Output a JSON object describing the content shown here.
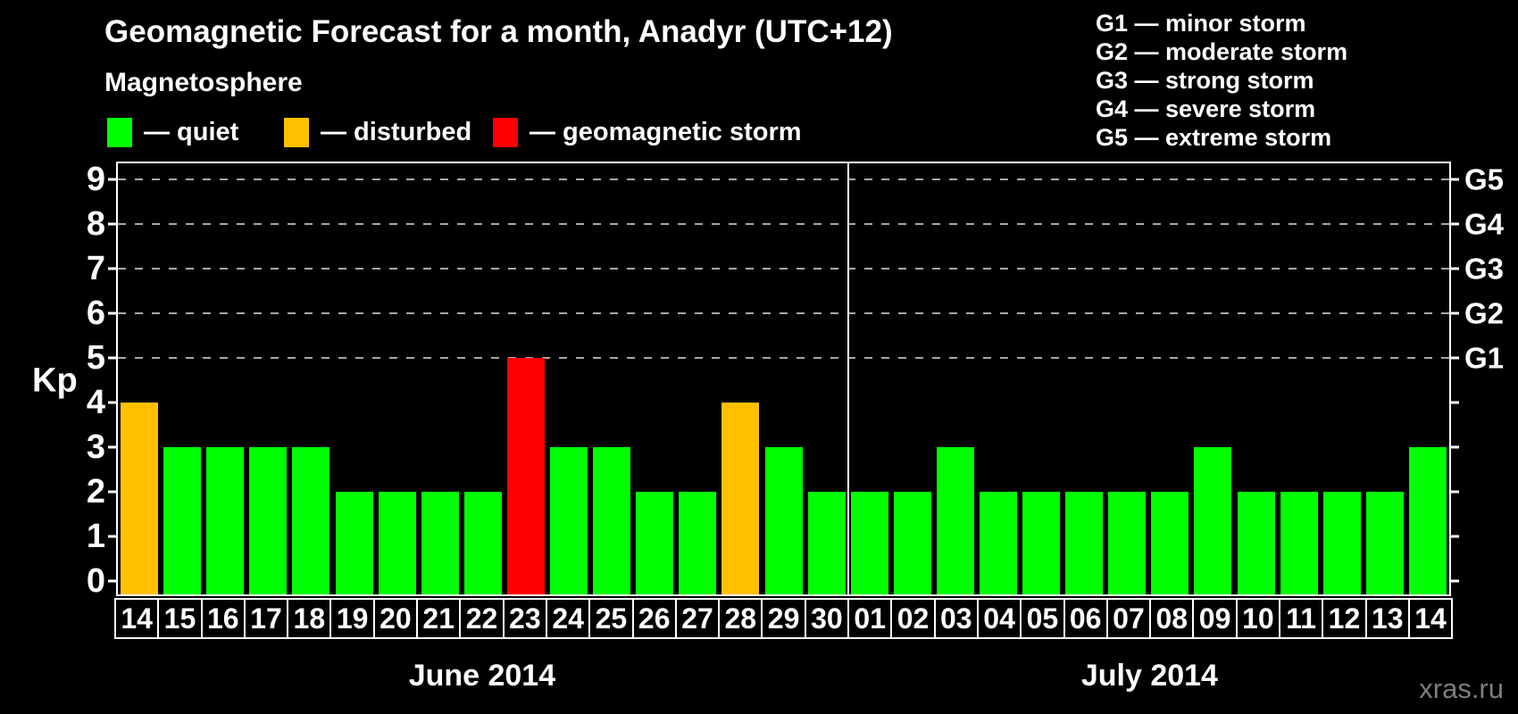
{
  "title": "Geomagnetic Forecast for a month, Anadyr (UTC+12)",
  "subtitle": "Magnetosphere",
  "legend": {
    "items": [
      {
        "key": "quiet",
        "label": "— quiet"
      },
      {
        "key": "disturbed",
        "label": "— disturbed"
      },
      {
        "key": "storm",
        "label": "— geomagnetic storm"
      }
    ]
  },
  "g_legend": [
    "G1 — minor storm",
    "G2 — moderate storm",
    "G3 — strong storm",
    "G4 — severe storm",
    "G5 — extreme storm"
  ],
  "axes": {
    "y_label": "Kp",
    "y_ticks": [
      "0",
      "1",
      "2",
      "3",
      "4",
      "5",
      "6",
      "7",
      "8",
      "9"
    ],
    "right_labels": [
      {
        "kp": 5,
        "label": "G1"
      },
      {
        "kp": 6,
        "label": "G2"
      },
      {
        "kp": 7,
        "label": "G3"
      },
      {
        "kp": 8,
        "label": "G4"
      },
      {
        "kp": 9,
        "label": "G5"
      }
    ],
    "grid_levels": [
      5,
      6,
      7,
      8,
      9
    ]
  },
  "chart_data": {
    "type": "bar",
    "title": "Geomagnetic Forecast for a month, Anadyr (UTC+12)",
    "xlabel": "",
    "ylabel": "Kp",
    "ylim": [
      0,
      9
    ],
    "grid": "dashed horizontal at Kp 5-9 only",
    "legend_position": "top-left",
    "categories": [
      "14",
      "15",
      "16",
      "17",
      "18",
      "19",
      "20",
      "21",
      "22",
      "23",
      "24",
      "25",
      "26",
      "27",
      "28",
      "29",
      "30",
      "01",
      "02",
      "03",
      "04",
      "05",
      "06",
      "07",
      "08",
      "09",
      "10",
      "11",
      "12",
      "13",
      "14"
    ],
    "values": [
      4,
      3,
      3,
      3,
      3,
      2,
      2,
      2,
      2,
      5,
      3,
      3,
      2,
      2,
      4,
      3,
      2,
      2,
      2,
      3,
      2,
      2,
      2,
      2,
      2,
      3,
      2,
      2,
      2,
      2,
      3
    ],
    "statuses": [
      "disturbed",
      "quiet",
      "quiet",
      "quiet",
      "quiet",
      "quiet",
      "quiet",
      "quiet",
      "quiet",
      "storm",
      "quiet",
      "quiet",
      "quiet",
      "quiet",
      "disturbed",
      "quiet",
      "quiet",
      "quiet",
      "quiet",
      "quiet",
      "quiet",
      "quiet",
      "quiet",
      "quiet",
      "quiet",
      "quiet",
      "quiet",
      "quiet",
      "quiet",
      "quiet",
      "quiet"
    ],
    "months": [
      {
        "label": "June 2014",
        "days": 17
      },
      {
        "label": "July 2014",
        "days": 14
      }
    ]
  },
  "colors": {
    "quiet": "#00ff00",
    "disturbed": "#ffc000",
    "storm": "#ff0000",
    "grid": "#a8a8a8",
    "axis": "#ffffff",
    "watermark": "#7d7d7d",
    "background": "#000000"
  },
  "watermark": "xras.ru"
}
